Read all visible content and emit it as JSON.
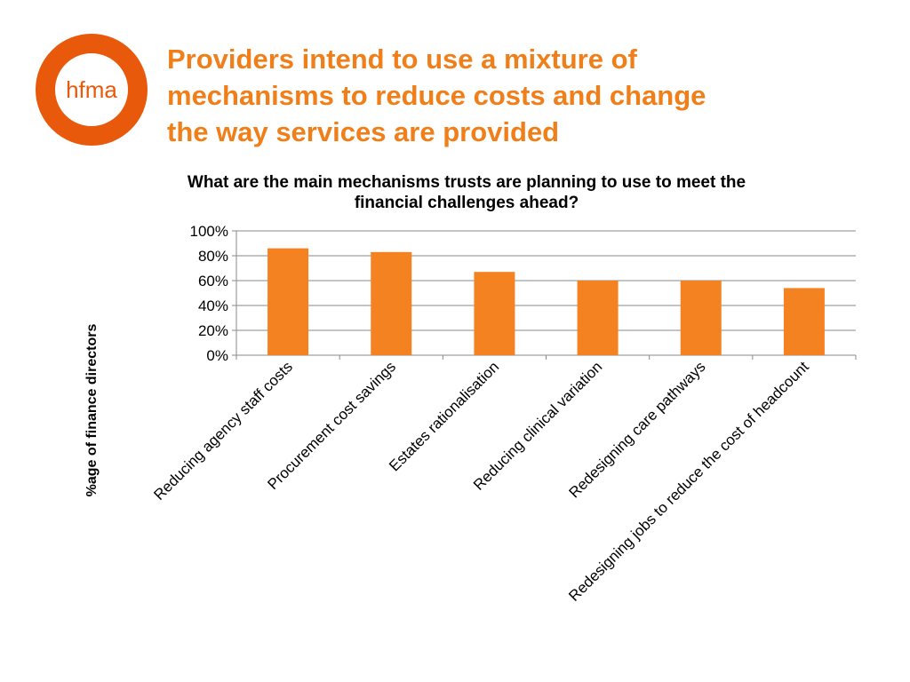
{
  "brand": {
    "logo_text": "hfma",
    "accent_color": "#e8590c",
    "headline_color": "#f07f1a"
  },
  "headline": {
    "lines": [
      "Providers intend to use a mixture of",
      "mechanisms to reduce costs and change",
      "the way services are provided"
    ]
  },
  "chart_data": {
    "type": "bar",
    "title": "What are the main mechanisms trusts are planning to use to meet the financial challenges ahead?",
    "ylabel": "%age of finance directors",
    "xlabel": "",
    "categories": [
      "Reducing agency staff costs",
      "Procurement cost savings",
      "Estates rationalisation",
      "Reducing clinical variation",
      "Redesigning care pathways",
      "Redesigning jobs to reduce the cost of headcount"
    ],
    "values": [
      86,
      83,
      67,
      60,
      60,
      54
    ],
    "ylim": [
      0,
      100
    ],
    "yticks": [
      "0%",
      "20%",
      "40%",
      "60%",
      "80%",
      "100%"
    ],
    "bar_color": "#f58220",
    "grid": true,
    "legend": "none"
  }
}
